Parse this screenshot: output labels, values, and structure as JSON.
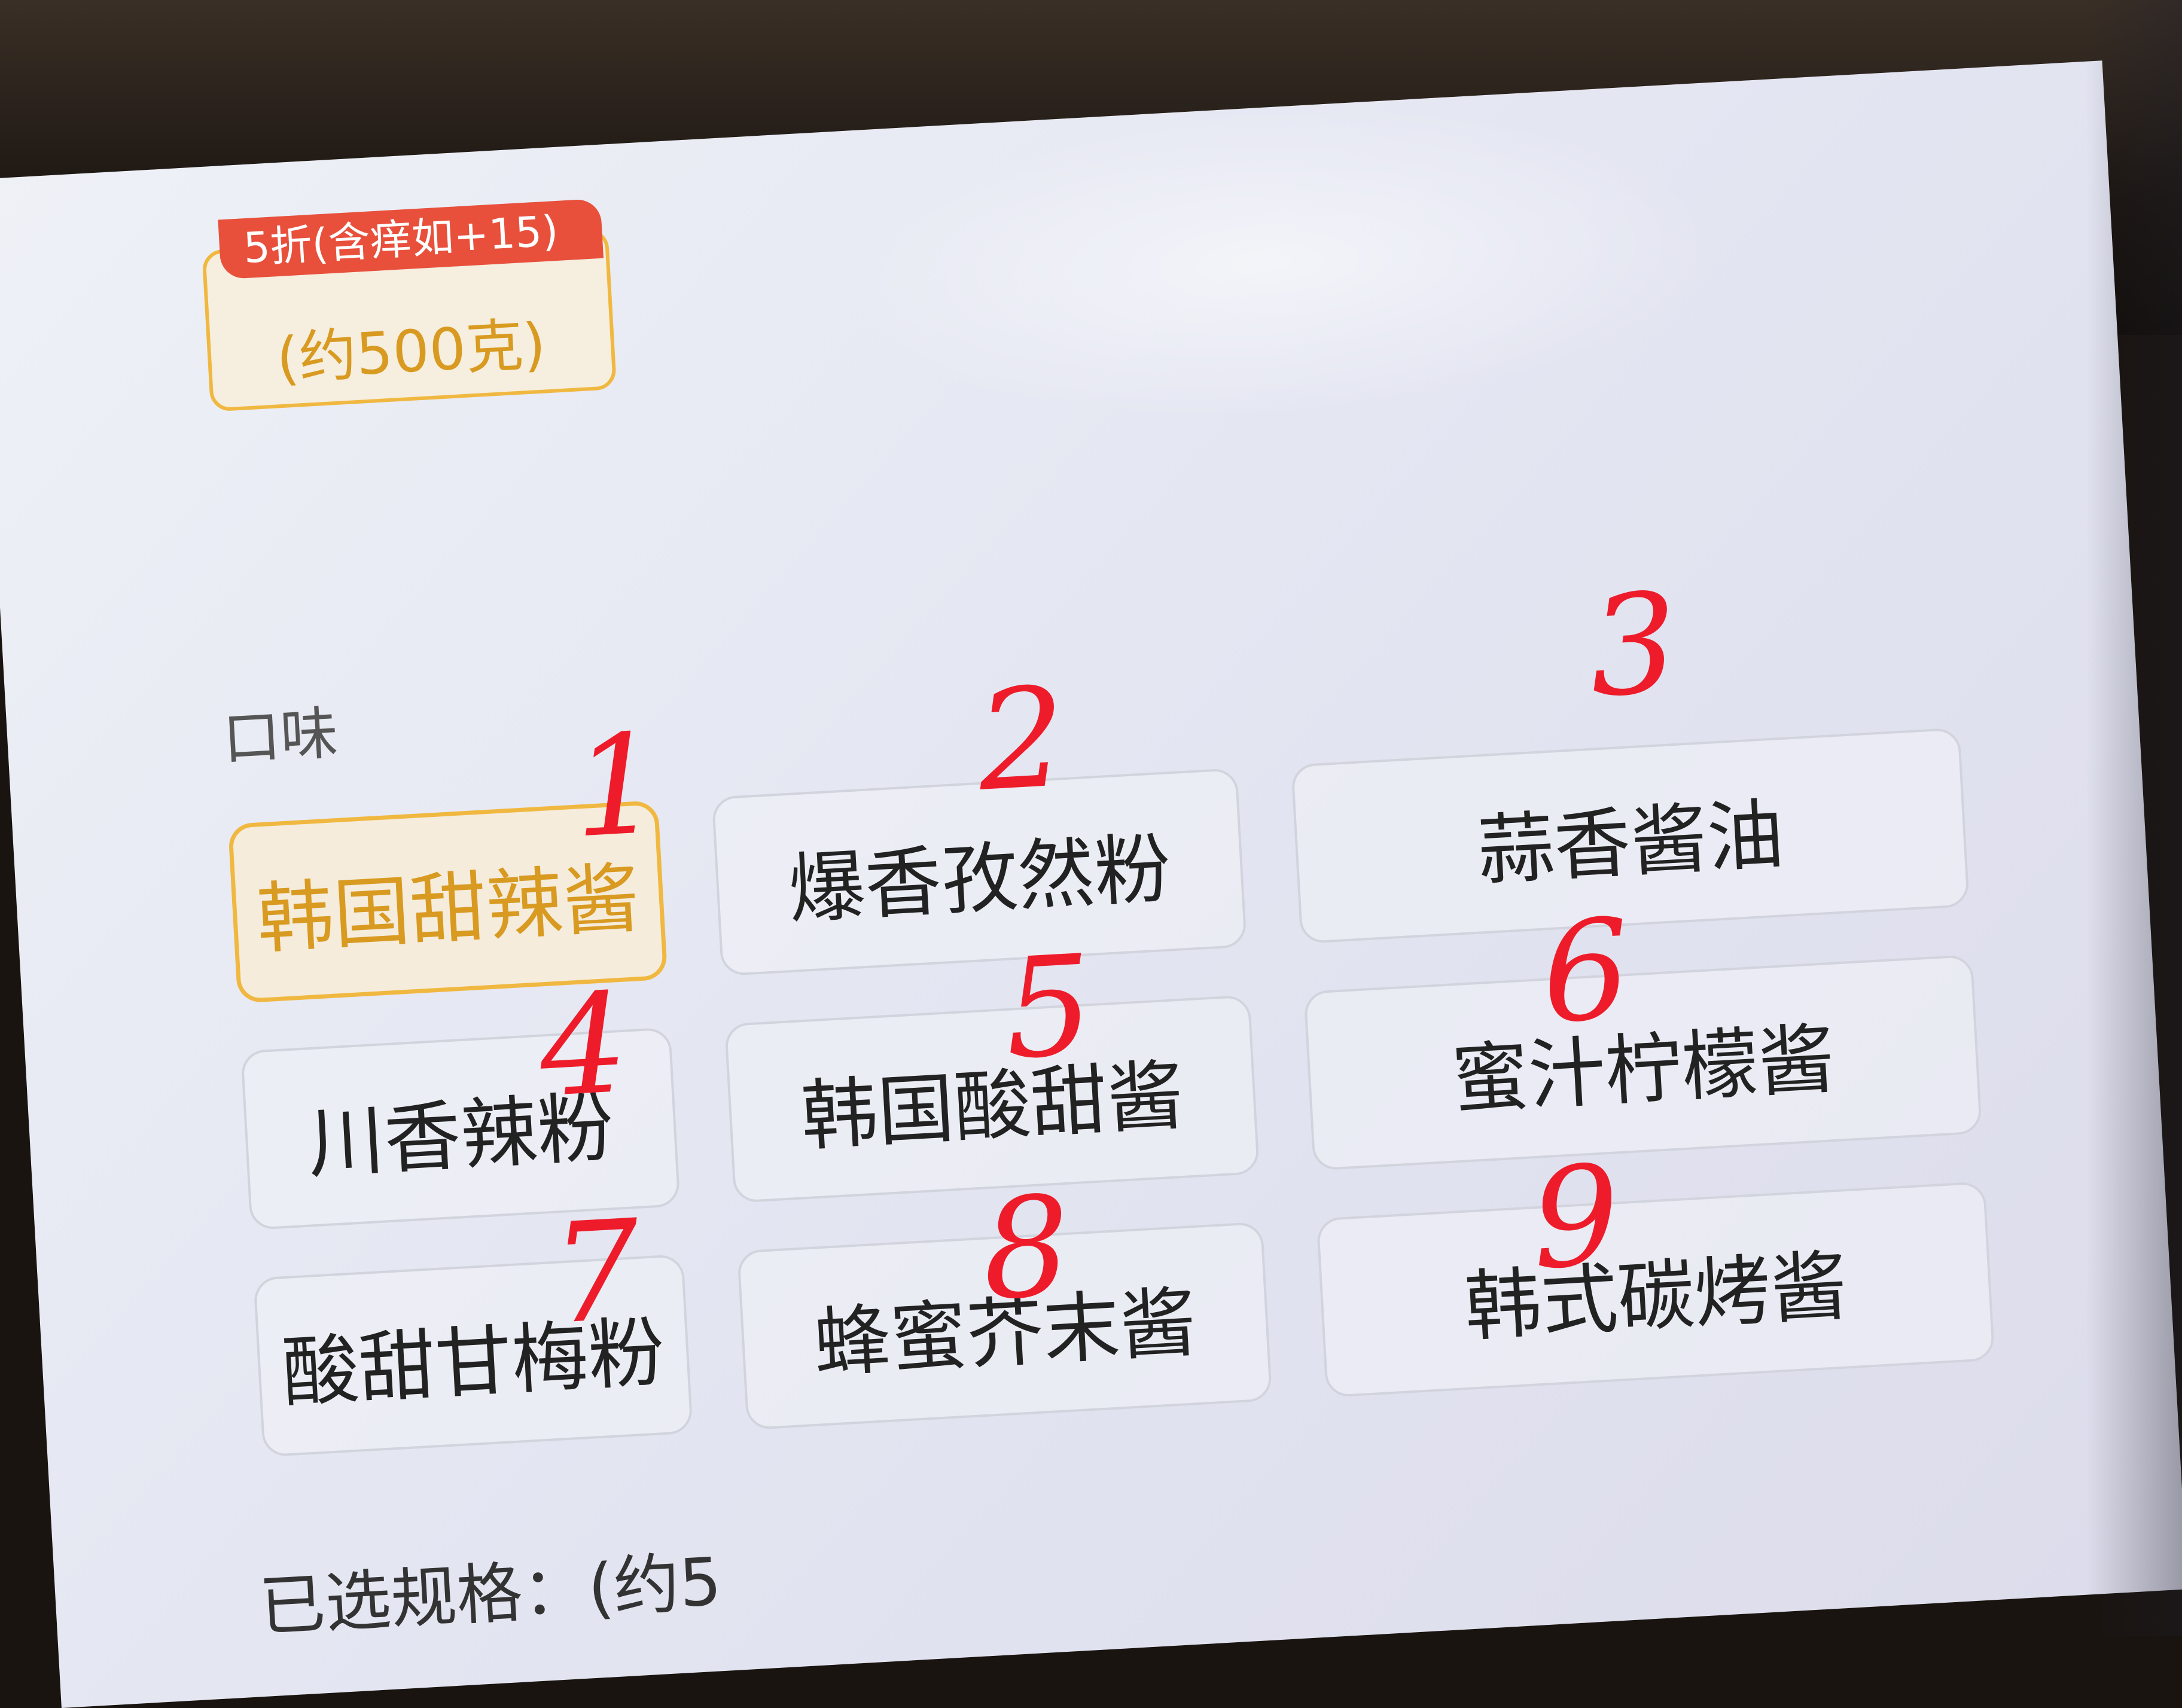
{
  "previous_spec": {
    "tag": "5折(含痒如+15)",
    "label": "(约500克)"
  },
  "flavor_section": {
    "title": "口味",
    "options": [
      {
        "label": "韩国甜辣酱",
        "selected": true,
        "annotation": "1"
      },
      {
        "label": "爆香孜然粉",
        "selected": false,
        "annotation": "2"
      },
      {
        "label": "蒜香酱油",
        "selected": false,
        "annotation": "3"
      },
      {
        "label": "川香辣粉",
        "selected": false,
        "annotation": "4"
      },
      {
        "label": "韩国酸甜酱",
        "selected": false,
        "annotation": "5"
      },
      {
        "label": "蜜汁柠檬酱",
        "selected": false,
        "annotation": "6"
      },
      {
        "label": "酸甜甘梅粉",
        "selected": false,
        "annotation": "7"
      },
      {
        "label": "蜂蜜芥末酱",
        "selected": false,
        "annotation": "8"
      },
      {
        "label": "韩式碳烤酱",
        "selected": false,
        "annotation": "9"
      }
    ]
  },
  "selected_spec": {
    "text": "已选规格：(约5"
  },
  "colors": {
    "accent": "#f0b840",
    "accent_text": "#d89a20",
    "tag_red": "#e8503c",
    "annotation_red": "#ee1c2a"
  }
}
